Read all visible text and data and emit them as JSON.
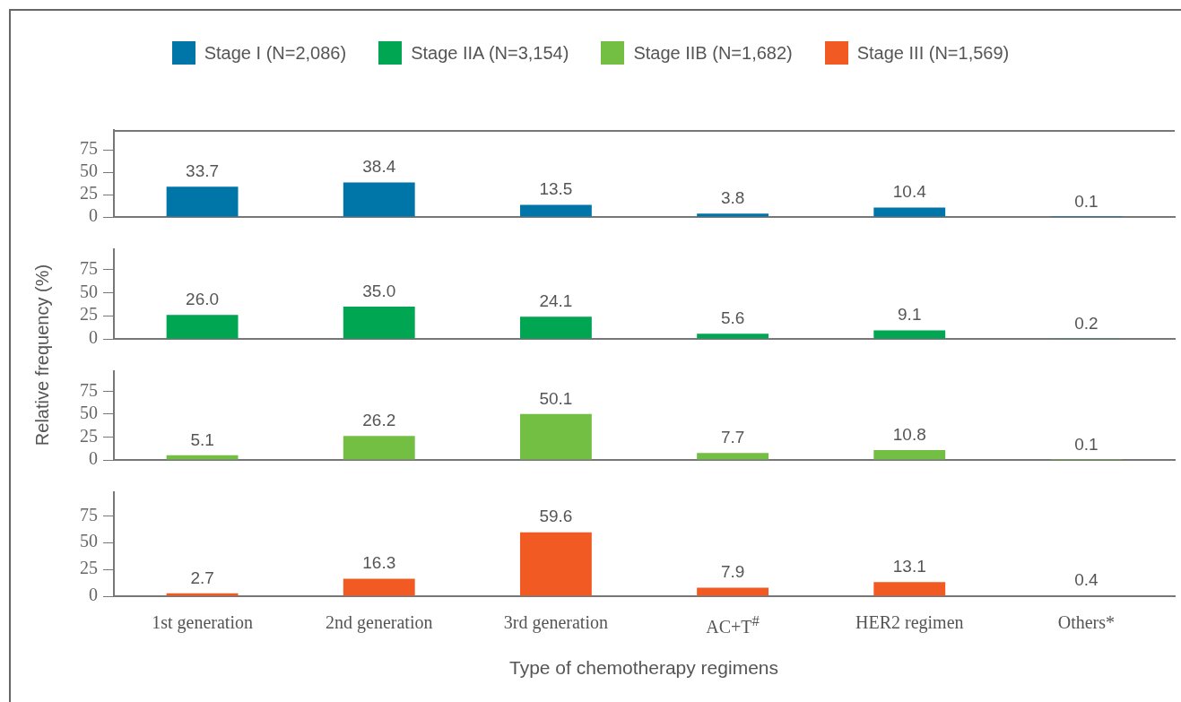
{
  "chart_data": [
    {
      "type": "bar",
      "categories": [
        "1st generation",
        "2nd generation",
        "3rd generation",
        "AC+T$^{#}$",
        "HER2 regimen",
        "Others*"
      ],
      "series": [
        {
          "name": "Stage I (N=2,086)",
          "color": "#0075a8",
          "values": [
            33.7,
            38.4,
            13.5,
            3.8,
            10.4,
            0.1
          ],
          "value_labels": [
            "33.7",
            "38.4",
            "13.5",
            "3.8",
            "10.4",
            "0.1"
          ]
        }
      ],
      "ylim": [
        0,
        97
      ],
      "yticks": [
        0,
        25,
        50,
        75
      ],
      "ylabel": "Relative frequency (%)",
      "legend": "top",
      "tick_labels": "y",
      "grid": false
    },
    {
      "type": "bar",
      "categories": [
        "1st generation",
        "2nd generation",
        "3rd generation",
        "AC+T$^{#}$",
        "HER2 regimen",
        "Others*"
      ],
      "series": [
        {
          "name": "Stage IIA (N=3,154)",
          "color": "#00a651",
          "values": [
            26.0,
            35.0,
            24.1,
            5.6,
            9.1,
            0.2
          ],
          "value_labels": [
            "26.0",
            "35.0",
            "24.1",
            "5.6",
            "9.1",
            "0.2"
          ]
        }
      ],
      "ylim": [
        0,
        97
      ],
      "yticks": [
        0,
        25,
        50,
        75
      ],
      "legend": "top",
      "tick_labels": "y",
      "grid": false
    },
    {
      "type": "bar",
      "categories": [
        "1st generation",
        "2nd generation",
        "3rd generation",
        "AC+T$^{#}$",
        "HER2 regimen",
        "Others*"
      ],
      "series": [
        {
          "name": "Stage IIB (N=1,682)",
          "color": "#72bf44",
          "values": [
            5.1,
            26.2,
            50.1,
            7.7,
            10.8,
            0.1
          ],
          "value_labels": [
            "5.1",
            "26.2",
            "50.1",
            "7.7",
            "10.8",
            "0.1"
          ]
        }
      ],
      "ylim": [
        0,
        97
      ],
      "yticks": [
        0,
        25,
        50,
        75
      ],
      "legend": "top",
      "tick_labels": "y",
      "grid": false
    },
    {
      "type": "bar",
      "categories": [
        "1st generation",
        "2nd generation",
        "3rd generation",
        "AC+T$^{#}$",
        "HER2 regimen",
        "Others*"
      ],
      "series": [
        {
          "name": "Stage III (N=1,569)",
          "color": "#f15a22",
          "values": [
            2.7,
            16.3,
            59.6,
            7.9,
            13.1,
            0.4
          ],
          "value_labels": [
            "2.7",
            "16.3",
            "59.6",
            "7.9",
            "13.1",
            "0.4"
          ]
        }
      ],
      "ylim": [
        0,
        97
      ],
      "yticks": [
        0,
        25,
        50,
        75
      ],
      "xlabel": "Type of chemotherapy regimens",
      "legend": "top",
      "grid": false
    }
  ]
}
